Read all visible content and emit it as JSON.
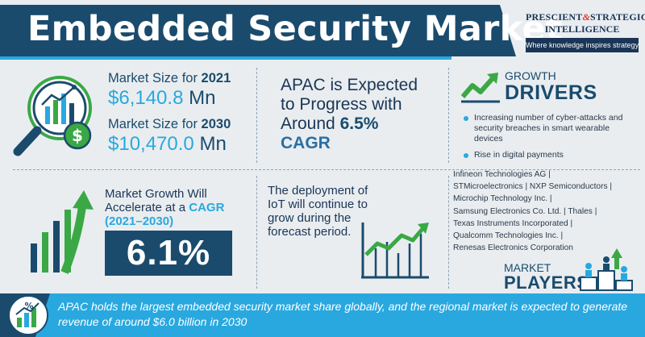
{
  "header": {
    "title": "Embedded Security Market",
    "brand": {
      "line1_a": "PRESCIENT",
      "line1_amp": "&",
      "line1_b": "STRATEGIC",
      "line2": "INTELLIGENCE",
      "tagline": "Where knowledge inspires strategy"
    }
  },
  "market_size": {
    "label_prefix": "Market Size for",
    "year_2021": "2021",
    "value_2021": "$6,140.8",
    "unit": "Mn",
    "year_2030": "2030",
    "value_2030": "$10,470.0"
  },
  "apac": {
    "line1": "APAC is Expected",
    "line2": "to Progress with",
    "line3_pre": "Around ",
    "line3_value": "6.5%",
    "line4": "CAGR"
  },
  "growth_drivers": {
    "small": "GROWTH",
    "big": "DRIVERS",
    "items": [
      "Increasing number of cyber-attacks and security breaches in smart wearable devices",
      "Rise in digital payments"
    ]
  },
  "market_growth": {
    "line1": "Market Growth Will",
    "line2_pre": "Accelerate at a ",
    "line2_cagr": "CAGR",
    "years": "(2021–2030)",
    "value": "6.1%"
  },
  "iot": {
    "text": "The deployment of IoT will continue to grow during the forecast period."
  },
  "players": {
    "lines": [
      "Infineon Technologies AG |",
      "STMicroelectronics | NXP Semiconductors |",
      "Microchip Technology Inc. |",
      "Samsung Electronics Co. Ltd. | Thales |",
      "Texas Instruments Incorporated |",
      "Qualcomm Technologies Inc. |",
      "Renesas Electronics Corporation"
    ],
    "small": "MARKET",
    "big": "PLAYERS"
  },
  "banner": {
    "text": "APAC holds the largest embedded security market share globally, and the regional market is expected to generate revenue of around $6.0 billion in 2030"
  },
  "colors": {
    "navy": "#1a4b6d",
    "accent": "#29a8df",
    "dark": "#1a3556",
    "green": "#3aa845"
  },
  "icons": [
    "magnifier-chart-icon",
    "dollar-coin-icon",
    "growth-arrow-icon",
    "bar-growth-icon",
    "line-chart-icon",
    "people-podium-icon",
    "percent-growth-icon"
  ]
}
